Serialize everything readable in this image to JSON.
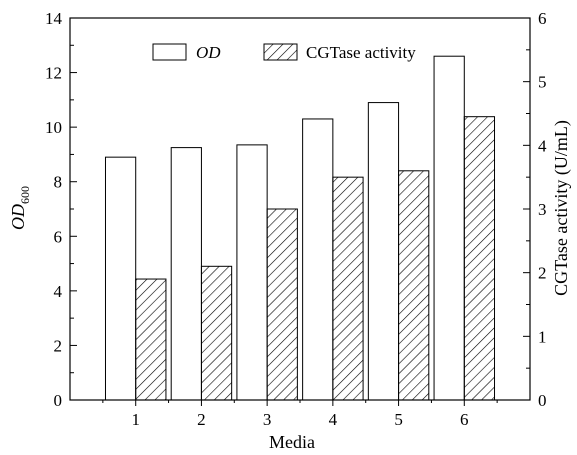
{
  "chart_data": {
    "type": "bar",
    "xlabel": "Media",
    "ylabel_left": {
      "main": "OD",
      "sub": "600"
    },
    "ylabel_right": "CGTase activity (U/mL)",
    "categories": [
      "1",
      "2",
      "3",
      "4",
      "5",
      "6"
    ],
    "left_axis": {
      "min": 0,
      "max": 14,
      "ticks": [
        "0",
        "2",
        "4",
        "6",
        "8",
        "10",
        "12",
        "14"
      ]
    },
    "right_axis": {
      "min": 0,
      "max": 6,
      "ticks": [
        "0",
        "1",
        "2",
        "3",
        "4",
        "5",
        "6"
      ]
    },
    "series": [
      {
        "name": "OD",
        "axis": "left",
        "pattern": "open",
        "values": [
          8.9,
          9.25,
          9.35,
          10.3,
          10.9,
          12.6
        ]
      },
      {
        "name": "CGTase activity",
        "axis": "right",
        "pattern": "hatched",
        "values": [
          1.9,
          2.1,
          3.0,
          3.5,
          3.6,
          4.45
        ]
      }
    ],
    "legend_placement": "top",
    "grid": false
  }
}
